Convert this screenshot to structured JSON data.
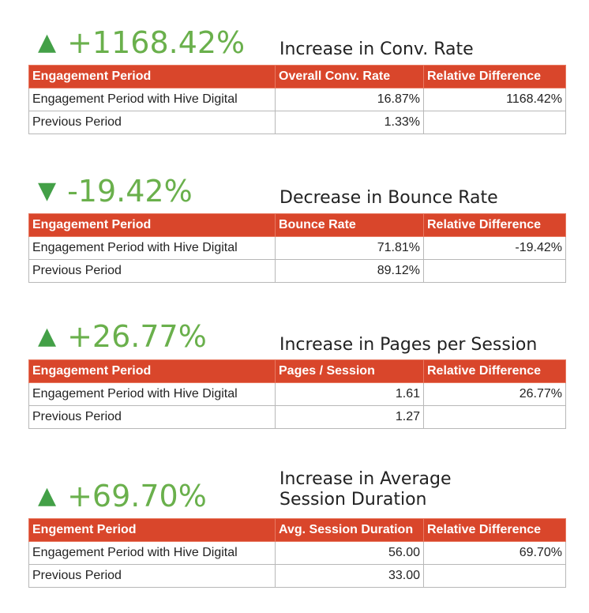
{
  "sections": [
    {
      "arrow": "▲",
      "value": "+1168.42%",
      "caption_line1": "Increase in Conv. Rate",
      "caption_line2": "",
      "headers": [
        "Engagement Period",
        "Overall Conv. Rate",
        "Relative Difference"
      ],
      "rows": [
        [
          "Engagement Period with Hive Digital",
          "16.87%",
          "1168.42%"
        ],
        [
          "Previous Period",
          "1.33%",
          ""
        ]
      ]
    },
    {
      "arrow": "▼",
      "value": "-19.42%",
      "caption_line1": "Decrease in Bounce Rate",
      "caption_line2": "",
      "headers": [
        "Engagement Period",
        "Bounce Rate",
        "Relative Difference"
      ],
      "rows": [
        [
          "Engagement Period with Hive Digital",
          "71.81%",
          "-19.42%"
        ],
        [
          "Previous Period",
          "89.12%",
          ""
        ]
      ]
    },
    {
      "arrow": "▲",
      "value": "+26.77%",
      "caption_line1": "Increase in Pages per Session",
      "caption_line2": "",
      "headers": [
        "Engagement Period",
        "Pages / Session",
        "Relative Difference"
      ],
      "rows": [
        [
          "Engagement Period with Hive Digital",
          "1.61",
          "26.77%"
        ],
        [
          "Previous Period",
          "1.27",
          ""
        ]
      ]
    },
    {
      "arrow": "▲",
      "value": "+69.70%",
      "caption_line1": "Increase in Average",
      "caption_line2": "Session Duration",
      "headers": [
        "Engement Period",
        "Avg. Session Duration",
        "Relative Difference"
      ],
      "rows": [
        [
          "Engagement Period with Hive Digital",
          "56.00",
          "69.70%"
        ],
        [
          "Previous Period",
          "33.00",
          ""
        ]
      ]
    }
  ],
  "colors": {
    "header_bg": "#d9462b",
    "positive_green": "#6ab04c",
    "arrow_green": "#43a047"
  }
}
